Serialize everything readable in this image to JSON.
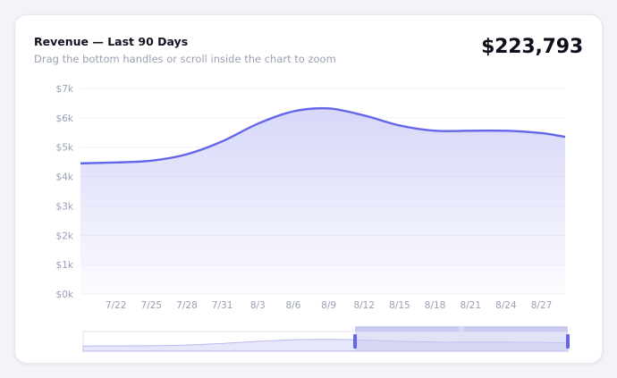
{
  "header": {
    "title": "Revenue — Last 90 Days",
    "subtitle": "Drag the bottom handles or scroll inside the chart to zoom",
    "total": "$223,793"
  },
  "colors": {
    "line": "#6366e8",
    "area_top": "#c9caf6",
    "grid": "#eef0f5",
    "brush_fill": "#c8caef",
    "brush_handle": "#6366e8"
  },
  "chart_data": {
    "type": "area",
    "ylim": [
      0,
      7000
    ],
    "y_ticks": [
      "$0k",
      "$1k",
      "$2k",
      "$3k",
      "$4k",
      "$5k",
      "$6k",
      "$7k"
    ],
    "x_ticks": [
      "7/22",
      "7/25",
      "7/28",
      "7/31",
      "8/3",
      "8/6",
      "8/9",
      "8/12",
      "8/15",
      "8/18",
      "8/21",
      "8/24",
      "8/27"
    ],
    "x_start": "7/19",
    "x_end": "8/29",
    "series": [
      {
        "x": [
          "7/19",
          "7/22",
          "7/25",
          "7/28",
          "7/31",
          "8/3",
          "8/6",
          "8/9",
          "8/12",
          "8/15",
          "8/18",
          "8/21",
          "8/24",
          "8/27",
          "8/29"
        ],
        "values": [
          4450,
          4480,
          4540,
          4760,
          5200,
          5800,
          6220,
          6320,
          6080,
          5740,
          5560,
          5560,
          5560,
          5480,
          5350
        ]
      }
    ],
    "grid": true,
    "zoom_range": [
      "8/11",
      "8/29"
    ]
  }
}
